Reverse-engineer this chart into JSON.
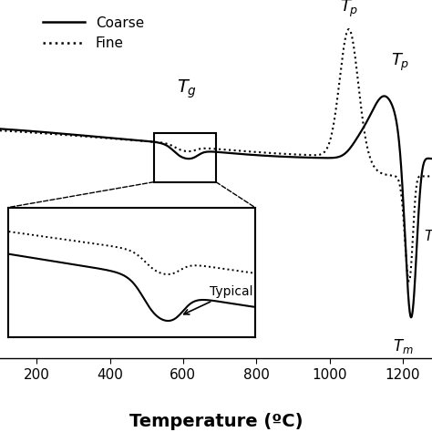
{
  "title": "",
  "xlabel": "Temperature (ºC)",
  "ylabel": "",
  "xlim": [
    100,
    1280
  ],
  "ylim_main": [
    -3.8,
    2.8
  ],
  "legend_coarse": "Coarse",
  "legend_fine": "Fine",
  "background": "#ffffff",
  "line_color": "#000000",
  "xlabel_fontsize": 14,
  "legend_fontsize": 11,
  "annotation_fontsize": 13,
  "rect_x_min": 520,
  "rect_x_max": 690,
  "rect_y_min": -0.55,
  "rect_y_max": 0.35
}
